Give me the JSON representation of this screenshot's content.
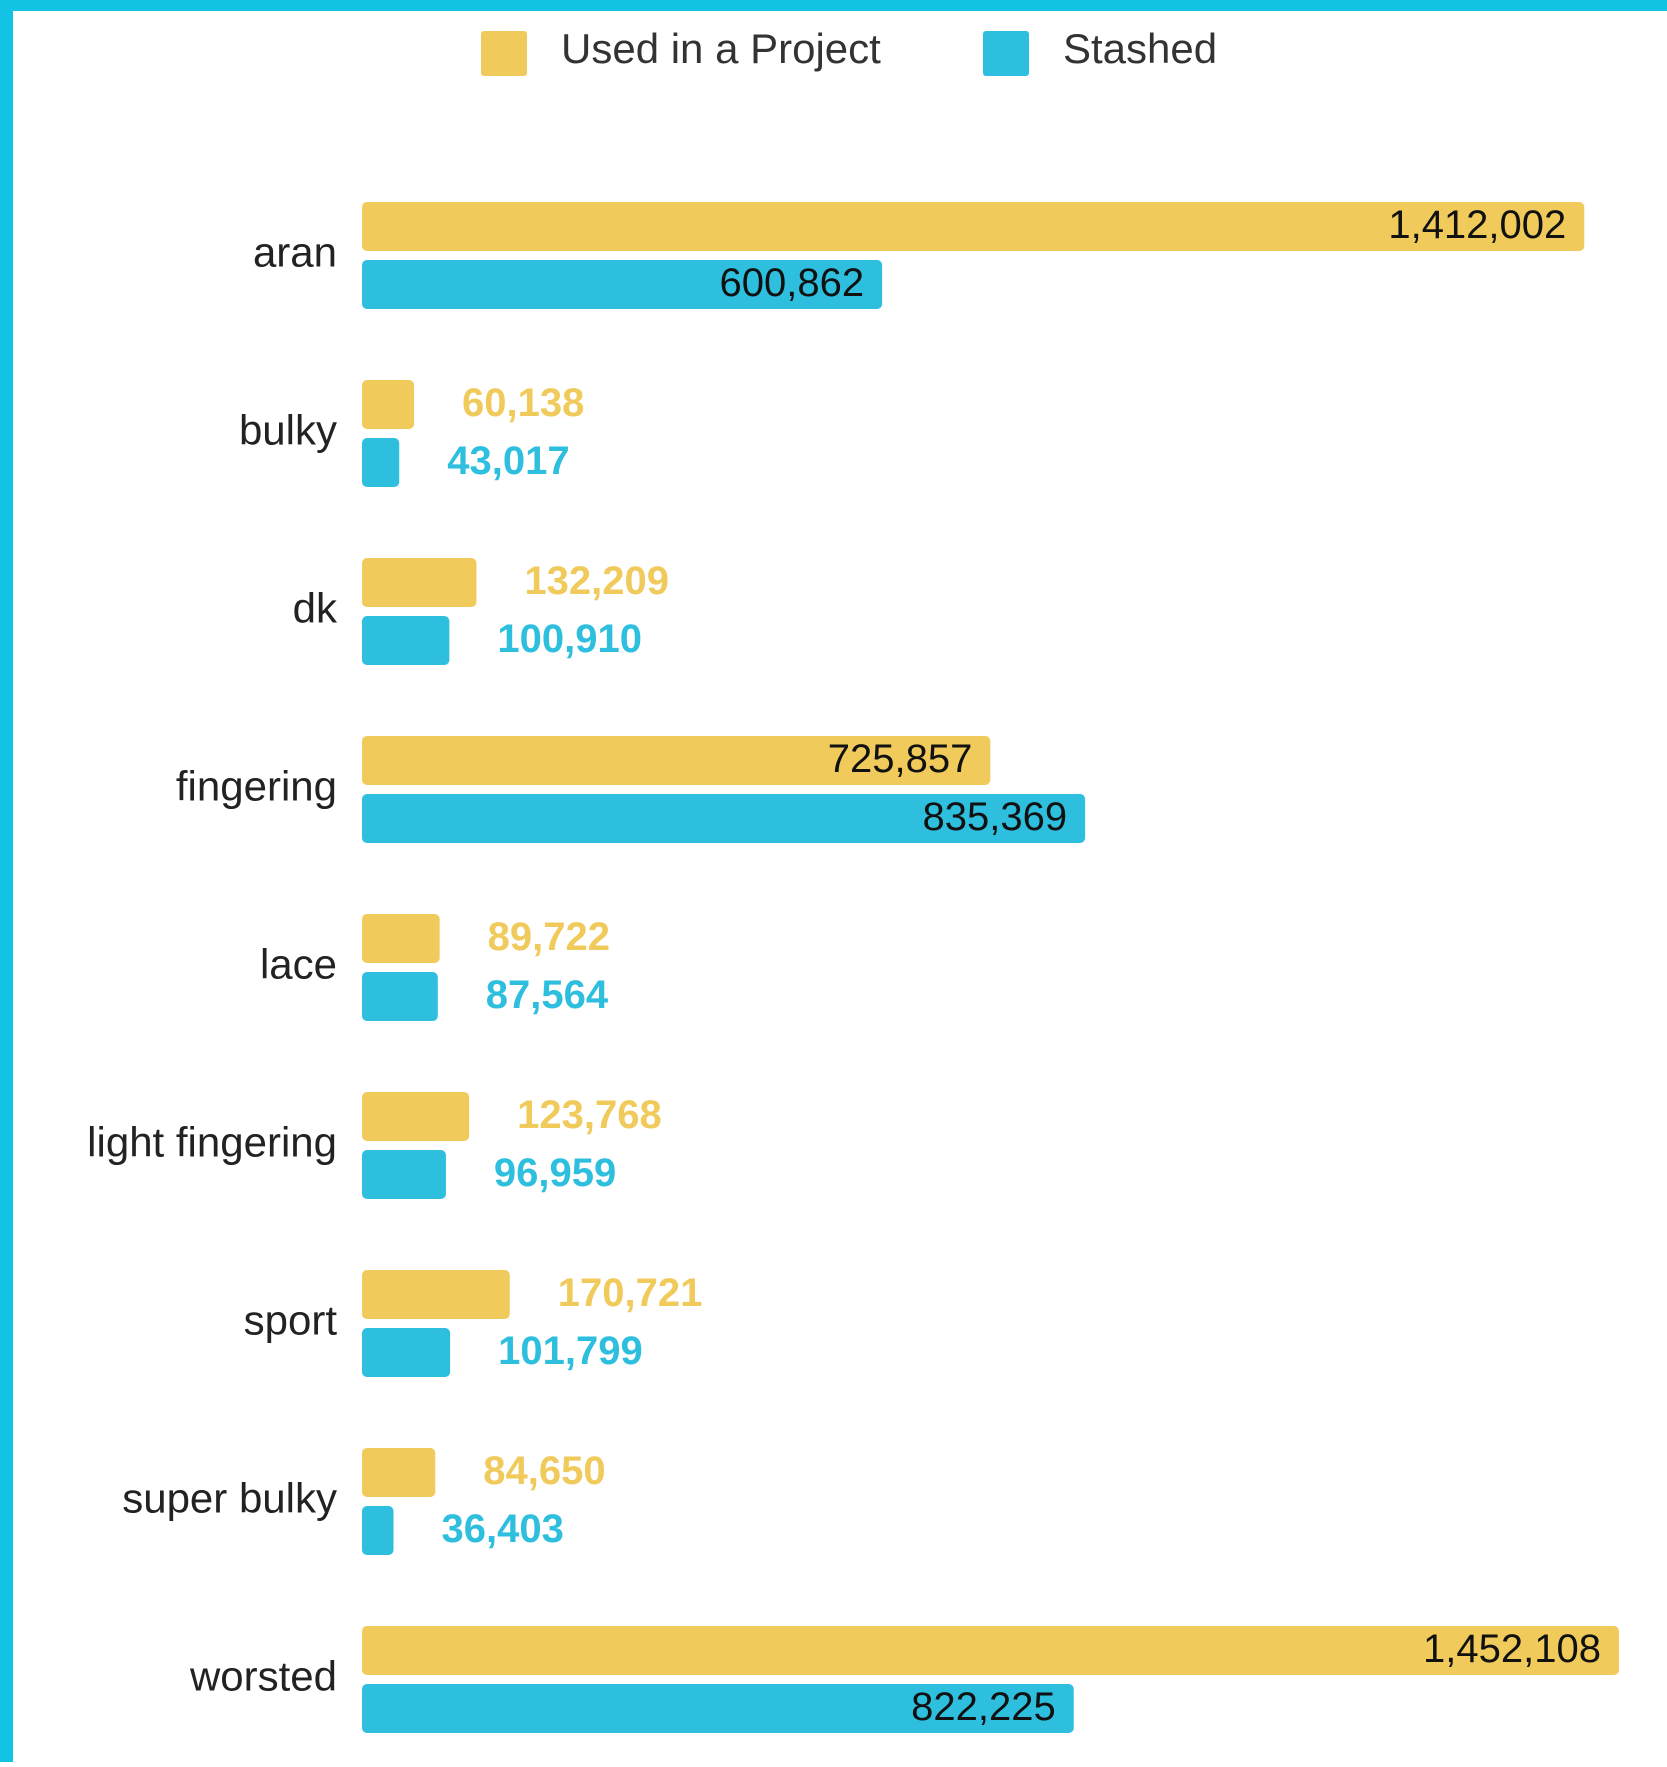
{
  "chart_data": {
    "type": "hbar",
    "categories": [
      "aran",
      "bulky",
      "dk",
      "fingering",
      "lace",
      "light fingering",
      "sport",
      "super bulky",
      "worsted"
    ],
    "series": [
      {
        "name": "Used in a Project",
        "color": "#f0ca5a",
        "values": [
          1412002,
          60138,
          132209,
          725857,
          89722,
          123768,
          170721,
          84650,
          1452108
        ],
        "value_labels": [
          "1,412,002",
          "60,138",
          "132,209",
          "725,857",
          "89,722",
          "123,768",
          "170,721",
          "84,650",
          "1,452,108"
        ]
      },
      {
        "name": "Stashed",
        "color": "#2ebfdf",
        "values": [
          600862,
          43017,
          100910,
          835369,
          87564,
          96959,
          101799,
          36403,
          822225
        ],
        "value_labels": [
          "600,862",
          "43,017",
          "100,910",
          "835,369",
          "87,564",
          "96,959",
          "101,799",
          "36,403",
          "822,225"
        ]
      }
    ],
    "legend": "top"
  }
}
